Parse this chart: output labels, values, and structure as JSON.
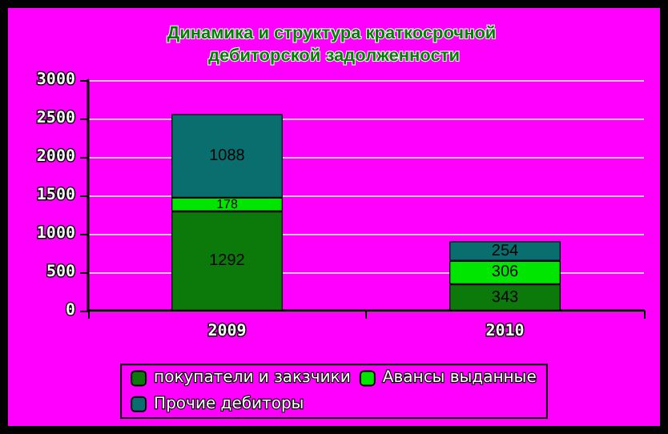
{
  "chart_data": {
    "type": "bar",
    "title": "Динамика и структура краткосрочной дебиторской задолженности",
    "categories": [
      "2009",
      "2010"
    ],
    "stacked": true,
    "data_labels": true,
    "grid": "y",
    "legend": "bottom",
    "ylim": [
      0,
      3000
    ],
    "yticks": [
      0,
      500,
      1000,
      1500,
      2000,
      2500,
      3000
    ],
    "series": [
      {
        "name": "покупатели и закзчики",
        "color": "#0b7a0b",
        "values": [
          1292,
          343
        ]
      },
      {
        "name": "Авансы выданные",
        "color": "#00e600",
        "values": [
          178,
          306
        ]
      },
      {
        "name": "Прочие дебиторы",
        "color": "#0a6e6e",
        "values": [
          1088,
          254
        ]
      }
    ]
  }
}
